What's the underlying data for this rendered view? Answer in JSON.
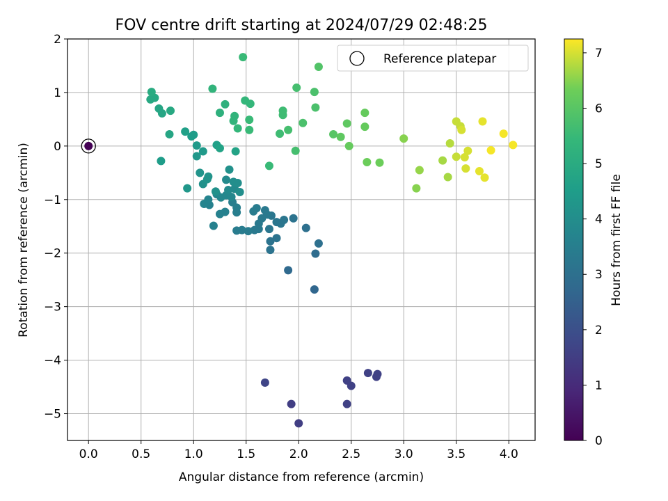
{
  "chart_data": {
    "type": "scatter",
    "title": "FOV centre drift starting at 2024/07/29 02:48:25",
    "xlabel": "Angular distance from reference (arcmin)",
    "ylabel": "Rotation from reference (arcmin)",
    "xlim": [
      -0.2,
      4.25
    ],
    "ylim": [
      -5.5,
      2.0
    ],
    "x_ticks": [
      0.0,
      0.5,
      1.0,
      1.5,
      2.0,
      2.5,
      3.0,
      3.5,
      4.0
    ],
    "x_tick_labels": [
      "0.0",
      "0.5",
      "1.0",
      "1.5",
      "2.0",
      "2.5",
      "3.0",
      "3.5",
      "4.0"
    ],
    "y_ticks": [
      2,
      1,
      0,
      -1,
      -2,
      -3,
      -4,
      -5
    ],
    "y_tick_labels": [
      "2",
      "1",
      "0",
      "−1",
      "−2",
      "−3",
      "−4",
      "−5"
    ],
    "grid": true,
    "legend": {
      "label": "Reference platepar",
      "placement": "upper right"
    },
    "reference_point": {
      "x": 0.0,
      "y": 0.0
    },
    "colorbar": {
      "label": "Hours from first FF file",
      "colormap": "viridis",
      "range": [
        0,
        7.25
      ],
      "ticks": [
        0,
        1,
        2,
        3,
        4,
        5,
        6,
        7
      ],
      "tick_labels": [
        "0",
        "1",
        "2",
        "3",
        "4",
        "5",
        "6",
        "7"
      ]
    },
    "points": [
      {
        "x": 1.93,
        "y": -4.82,
        "h": 1.5
      },
      {
        "x": 2.0,
        "y": -5.18,
        "h": 1.5
      },
      {
        "x": 2.46,
        "y": -4.82,
        "h": 1.6
      },
      {
        "x": 2.46,
        "y": -4.38,
        "h": 1.6
      },
      {
        "x": 2.5,
        "y": -4.48,
        "h": 1.6
      },
      {
        "x": 2.66,
        "y": -4.24,
        "h": 1.6
      },
      {
        "x": 2.74,
        "y": -4.31,
        "h": 1.6
      },
      {
        "x": 2.75,
        "y": -4.26,
        "h": 1.6
      },
      {
        "x": 1.68,
        "y": -4.42,
        "h": 1.7
      },
      {
        "x": 2.15,
        "y": -2.68,
        "h": 2.7
      },
      {
        "x": 1.9,
        "y": -2.32,
        "h": 2.8
      },
      {
        "x": 2.16,
        "y": -2.01,
        "h": 2.9
      },
      {
        "x": 2.19,
        "y": -1.82,
        "h": 3.0
      },
      {
        "x": 2.07,
        "y": -1.53,
        "h": 3.0
      },
      {
        "x": 1.73,
        "y": -1.94,
        "h": 3.1
      },
      {
        "x": 1.95,
        "y": -1.35,
        "h": 3.1
      },
      {
        "x": 1.73,
        "y": -1.78,
        "h": 3.1
      },
      {
        "x": 1.79,
        "y": -1.72,
        "h": 3.1
      },
      {
        "x": 1.83,
        "y": -1.45,
        "h": 3.2
      },
      {
        "x": 1.86,
        "y": -1.38,
        "h": 3.2
      },
      {
        "x": 1.79,
        "y": -1.42,
        "h": 3.2
      },
      {
        "x": 1.74,
        "y": -1.3,
        "h": 3.2
      },
      {
        "x": 1.72,
        "y": -1.55,
        "h": 3.2
      },
      {
        "x": 1.68,
        "y": -1.2,
        "h": 3.3
      },
      {
        "x": 1.7,
        "y": -1.28,
        "h": 3.3
      },
      {
        "x": 1.65,
        "y": -1.35,
        "h": 3.3
      },
      {
        "x": 1.62,
        "y": -1.45,
        "h": 3.3
      },
      {
        "x": 1.62,
        "y": -1.55,
        "h": 3.3
      },
      {
        "x": 1.58,
        "y": -1.57,
        "h": 3.3
      },
      {
        "x": 1.57,
        "y": -1.22,
        "h": 3.4
      },
      {
        "x": 1.6,
        "y": -1.16,
        "h": 3.4
      },
      {
        "x": 1.52,
        "y": -1.59,
        "h": 3.4
      },
      {
        "x": 1.46,
        "y": -1.57,
        "h": 3.4
      },
      {
        "x": 1.41,
        "y": -1.58,
        "h": 3.4
      },
      {
        "x": 1.41,
        "y": -1.24,
        "h": 3.5
      },
      {
        "x": 1.41,
        "y": -1.15,
        "h": 3.5
      },
      {
        "x": 1.37,
        "y": -1.05,
        "h": 3.5
      },
      {
        "x": 1.3,
        "y": -1.23,
        "h": 3.6
      },
      {
        "x": 1.25,
        "y": -1.27,
        "h": 3.6
      },
      {
        "x": 1.19,
        "y": -1.49,
        "h": 3.6
      },
      {
        "x": 1.15,
        "y": -1.1,
        "h": 3.6
      },
      {
        "x": 1.1,
        "y": -1.08,
        "h": 3.7
      },
      {
        "x": 1.14,
        "y": -1.0,
        "h": 3.7
      },
      {
        "x": 1.22,
        "y": -0.9,
        "h": 3.7
      },
      {
        "x": 1.26,
        "y": -0.96,
        "h": 3.8
      },
      {
        "x": 1.31,
        "y": -0.92,
        "h": 3.8
      },
      {
        "x": 1.36,
        "y": -0.95,
        "h": 3.8
      },
      {
        "x": 1.33,
        "y": -0.82,
        "h": 3.9
      },
      {
        "x": 1.39,
        "y": -0.8,
        "h": 3.9
      },
      {
        "x": 1.31,
        "y": -0.63,
        "h": 3.9
      },
      {
        "x": 1.38,
        "y": -0.67,
        "h": 4.0
      },
      {
        "x": 1.44,
        "y": -0.86,
        "h": 4.0
      },
      {
        "x": 1.42,
        "y": -0.69,
        "h": 4.0
      },
      {
        "x": 1.34,
        "y": -0.44,
        "h": 4.1
      },
      {
        "x": 1.21,
        "y": -0.85,
        "h": 4.1
      },
      {
        "x": 1.09,
        "y": -0.71,
        "h": 4.1
      },
      {
        "x": 1.14,
        "y": -0.57,
        "h": 4.2
      },
      {
        "x": 1.13,
        "y": -0.62,
        "h": 4.2
      },
      {
        "x": 1.06,
        "y": -0.5,
        "h": 4.2
      },
      {
        "x": 0.94,
        "y": -0.79,
        "h": 4.3
      },
      {
        "x": 1.03,
        "y": -0.19,
        "h": 4.3
      },
      {
        "x": 1.03,
        "y": 0.01,
        "h": 4.4
      },
      {
        "x": 1.09,
        "y": -0.1,
        "h": 4.4
      },
      {
        "x": 0.69,
        "y": -0.28,
        "h": 4.5
      },
      {
        "x": 0.98,
        "y": 0.18,
        "h": 4.5
      },
      {
        "x": 1.0,
        "y": 0.21,
        "h": 4.5
      },
      {
        "x": 0.92,
        "y": 0.27,
        "h": 4.6
      },
      {
        "x": 1.22,
        "y": 0.02,
        "h": 4.6
      },
      {
        "x": 1.25,
        "y": -0.04,
        "h": 4.7
      },
      {
        "x": 1.4,
        "y": -0.1,
        "h": 4.7
      },
      {
        "x": 0.77,
        "y": 0.22,
        "h": 4.8
      },
      {
        "x": 0.67,
        "y": 0.7,
        "h": 4.8
      },
      {
        "x": 0.7,
        "y": 0.61,
        "h": 4.8
      },
      {
        "x": 0.78,
        "y": 0.66,
        "h": 4.9
      },
      {
        "x": 0.59,
        "y": 0.87,
        "h": 4.9
      },
      {
        "x": 0.63,
        "y": 0.9,
        "h": 4.9
      },
      {
        "x": 0.6,
        "y": 1.01,
        "h": 5.0
      },
      {
        "x": 1.25,
        "y": 0.62,
        "h": 5.2
      },
      {
        "x": 1.3,
        "y": 0.78,
        "h": 5.2
      },
      {
        "x": 1.18,
        "y": 1.07,
        "h": 5.3
      },
      {
        "x": 1.38,
        "y": 0.47,
        "h": 5.3
      },
      {
        "x": 1.39,
        "y": 0.56,
        "h": 5.3
      },
      {
        "x": 1.42,
        "y": 0.33,
        "h": 5.4
      },
      {
        "x": 1.49,
        "y": 0.85,
        "h": 5.4
      },
      {
        "x": 1.54,
        "y": 0.79,
        "h": 5.4
      },
      {
        "x": 1.53,
        "y": 0.49,
        "h": 5.5
      },
      {
        "x": 1.53,
        "y": 0.3,
        "h": 5.5
      },
      {
        "x": 1.47,
        "y": 1.66,
        "h": 5.5
      },
      {
        "x": 1.72,
        "y": -0.37,
        "h": 5.5
      },
      {
        "x": 1.82,
        "y": 0.23,
        "h": 5.6
      },
      {
        "x": 1.85,
        "y": 0.58,
        "h": 5.6
      },
      {
        "x": 1.85,
        "y": 0.66,
        "h": 5.6
      },
      {
        "x": 1.9,
        "y": 0.3,
        "h": 5.7
      },
      {
        "x": 1.97,
        "y": -0.09,
        "h": 5.7
      },
      {
        "x": 1.98,
        "y": 1.09,
        "h": 5.7
      },
      {
        "x": 2.04,
        "y": 0.43,
        "h": 5.8
      },
      {
        "x": 2.15,
        "y": 1.01,
        "h": 5.8
      },
      {
        "x": 2.16,
        "y": 0.72,
        "h": 5.8
      },
      {
        "x": 2.19,
        "y": 1.48,
        "h": 5.9
      },
      {
        "x": 2.33,
        "y": 0.22,
        "h": 6.0
      },
      {
        "x": 2.4,
        "y": 0.17,
        "h": 6.1
      },
      {
        "x": 2.46,
        "y": 0.42,
        "h": 6.1
      },
      {
        "x": 2.48,
        "y": 0.0,
        "h": 6.2
      },
      {
        "x": 2.63,
        "y": 0.62,
        "h": 6.2
      },
      {
        "x": 2.63,
        "y": 0.36,
        "h": 6.2
      },
      {
        "x": 2.65,
        "y": -0.3,
        "h": 6.3
      },
      {
        "x": 2.77,
        "y": -0.31,
        "h": 6.3
      },
      {
        "x": 3.0,
        "y": 0.14,
        "h": 6.5
      },
      {
        "x": 3.12,
        "y": -0.79,
        "h": 6.5
      },
      {
        "x": 3.15,
        "y": -0.45,
        "h": 6.6
      },
      {
        "x": 3.37,
        "y": -0.27,
        "h": 6.7
      },
      {
        "x": 3.42,
        "y": -0.58,
        "h": 6.7
      },
      {
        "x": 3.44,
        "y": 0.05,
        "h": 6.8
      },
      {
        "x": 3.5,
        "y": 0.46,
        "h": 6.9
      },
      {
        "x": 3.5,
        "y": -0.2,
        "h": 6.9
      },
      {
        "x": 3.54,
        "y": 0.37,
        "h": 6.9
      },
      {
        "x": 3.55,
        "y": 0.3,
        "h": 7.0
      },
      {
        "x": 3.58,
        "y": -0.21,
        "h": 7.0
      },
      {
        "x": 3.59,
        "y": -0.42,
        "h": 7.0
      },
      {
        "x": 3.61,
        "y": -0.09,
        "h": 7.0
      },
      {
        "x": 3.72,
        "y": -0.47,
        "h": 7.1
      },
      {
        "x": 3.75,
        "y": 0.46,
        "h": 7.1
      },
      {
        "x": 3.77,
        "y": -0.59,
        "h": 7.1
      },
      {
        "x": 3.83,
        "y": -0.08,
        "h": 7.2
      },
      {
        "x": 3.95,
        "y": 0.23,
        "h": 7.2
      },
      {
        "x": 4.04,
        "y": 0.02,
        "h": 7.2
      }
    ]
  }
}
